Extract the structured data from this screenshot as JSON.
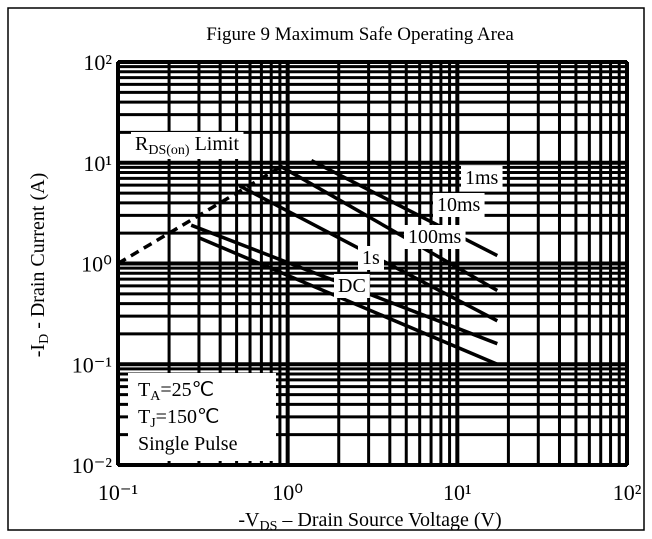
{
  "chart_data": {
    "type": "line",
    "title": "Figure 9 Maximum Safe Operating Area",
    "x_label": {
      "pre": "-V",
      "sub": "DS",
      "post": " – Drain Source Voltage (V)"
    },
    "y_label": {
      "pre": "-I",
      "sub": "D",
      "post": " - Drain Current (A)"
    },
    "log_x": true,
    "log_y": true,
    "grid": true,
    "xlim": [
      0.1,
      100
    ],
    "ylim": [
      0.01,
      100
    ],
    "xticks": [
      {
        "value": 0.1,
        "label": "10⁻¹"
      },
      {
        "value": 1,
        "label": "10⁰"
      },
      {
        "value": 10,
        "label": "10¹"
      },
      {
        "value": 100,
        "label": "10²"
      }
    ],
    "yticks": [
      {
        "value": 0.01,
        "label": "10⁻²"
      },
      {
        "value": 0.1,
        "label": "10⁻¹"
      },
      {
        "value": 1,
        "label": "10⁰"
      },
      {
        "value": 10,
        "label": "10¹"
      },
      {
        "value": 100,
        "label": "10²"
      }
    ],
    "series": [
      {
        "name": {
          "pre": "R",
          "sub": "DS(on)",
          "post": " Limit"
        },
        "color": "#000000",
        "dashed": true,
        "x": [
          0.1,
          0.9
        ],
        "values": [
          1,
          9
        ]
      },
      {
        "name": "1ms",
        "color": "#000000",
        "x": [
          1.38,
          17.2
        ],
        "values": [
          10.5,
          1.2
        ]
      },
      {
        "name": "10ms",
        "color": "#000000",
        "x": [
          0.9,
          17.2
        ],
        "values": [
          9.3,
          0.54
        ]
      },
      {
        "name": "100ms",
        "color": "#000000",
        "x": [
          0.52,
          17.2
        ],
        "values": [
          5.9,
          0.27
        ]
      },
      {
        "name": "1s",
        "color": "#000000",
        "x": [
          0.27,
          17.2
        ],
        "values": [
          2.4,
          0.16
        ]
      },
      {
        "name": "DC",
        "color": "#000000",
        "x": [
          0.3,
          17.2
        ],
        "values": [
          1.8,
          0.1
        ]
      }
    ],
    "conditions": [
      {
        "pre": "T",
        "sub": "A",
        "post": "=25℃"
      },
      {
        "pre": "T",
        "sub": "J",
        "post": "=150℃"
      },
      {
        "pre": "Single Pulse",
        "sub": "",
        "post": ""
      }
    ]
  }
}
